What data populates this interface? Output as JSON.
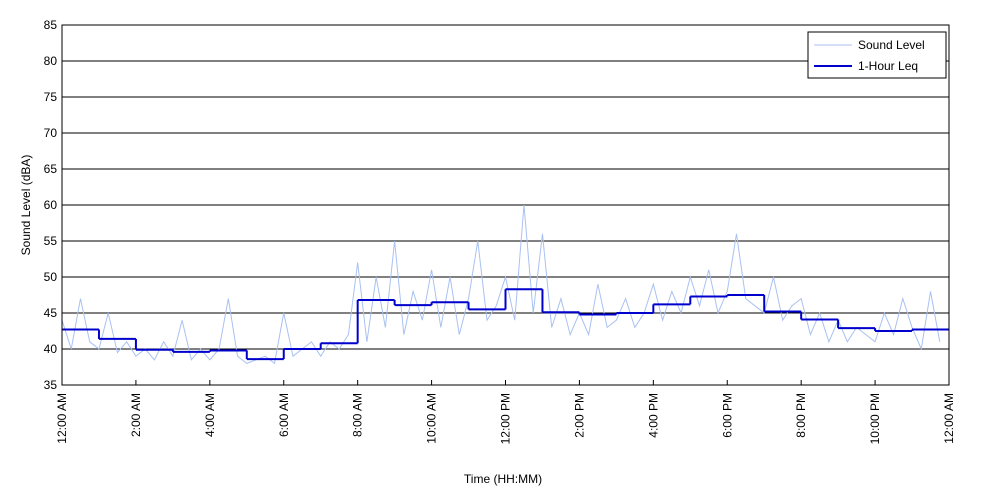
{
  "chart_data": {
    "type": "line",
    "xlabel": "Time (HH:MM)",
    "ylabel": "Sound Level (dBA)",
    "xlim": [
      0,
      24
    ],
    "ylim": [
      35,
      85
    ],
    "yticks": [
      35,
      40,
      45,
      50,
      55,
      60,
      65,
      70,
      75,
      80,
      85
    ],
    "xticks": [
      {
        "value": 0,
        "label": "12:00 AM"
      },
      {
        "value": 2,
        "label": "2:00 AM"
      },
      {
        "value": 4,
        "label": "4:00 AM"
      },
      {
        "value": 6,
        "label": "6:00 AM"
      },
      {
        "value": 8,
        "label": "8:00 AM"
      },
      {
        "value": 10,
        "label": "10:00 AM"
      },
      {
        "value": 12,
        "label": "12:00 PM"
      },
      {
        "value": 14,
        "label": "2:00 PM"
      },
      {
        "value": 16,
        "label": "4:00 PM"
      },
      {
        "value": 18,
        "label": "6:00 PM"
      },
      {
        "value": 20,
        "label": "8:00 PM"
      },
      {
        "value": 22,
        "label": "10:00 PM"
      },
      {
        "value": 24,
        "label": "12:00 AM"
      }
    ],
    "grid": true,
    "legend": "upper right",
    "series": [
      {
        "name": "Sound Level",
        "color": "#a9c1f2",
        "style": "line",
        "x": [
          0,
          0.25,
          0.5,
          0.75,
          1,
          1.25,
          1.5,
          1.75,
          2,
          2.25,
          2.5,
          2.75,
          3,
          3.25,
          3.5,
          3.75,
          4,
          4.25,
          4.5,
          4.75,
          5,
          5.25,
          5.5,
          5.75,
          6,
          6.25,
          6.5,
          6.75,
          7,
          7.25,
          7.5,
          7.75,
          8,
          8.25,
          8.5,
          8.75,
          9,
          9.25,
          9.5,
          9.75,
          10,
          10.25,
          10.5,
          10.75,
          11,
          11.25,
          11.5,
          11.75,
          12,
          12.25,
          12.5,
          12.75,
          13,
          13.25,
          13.5,
          13.75,
          14,
          14.25,
          14.5,
          14.75,
          15,
          15.25,
          15.5,
          15.75,
          16,
          16.25,
          16.5,
          16.75,
          17,
          17.25,
          17.5,
          17.75,
          18,
          18.25,
          18.5,
          18.75,
          19,
          19.25,
          19.5,
          19.75,
          20,
          20.25,
          20.5,
          20.75,
          21,
          21.25,
          21.5,
          21.75,
          22,
          22.25,
          22.5,
          22.75,
          23,
          23.25,
          23.5,
          23.75
        ],
        "values": [
          44,
          40,
          47,
          41,
          40,
          45,
          39.5,
          41,
          39,
          40,
          38.5,
          41,
          39,
          44,
          38.5,
          40,
          38.5,
          40,
          47,
          39,
          38,
          38.5,
          39,
          38,
          45,
          39,
          40,
          41,
          39,
          41,
          40,
          42,
          52,
          41,
          50,
          43,
          55,
          42,
          48,
          44,
          51,
          43,
          50,
          42,
          47,
          55,
          44,
          46,
          50,
          44,
          60,
          45,
          56,
          43,
          47,
          42,
          45,
          42,
          49,
          43,
          44,
          47,
          43,
          45,
          49,
          44,
          48,
          45,
          50,
          46,
          51,
          45,
          48,
          56,
          47,
          46,
          45,
          50,
          44,
          46,
          47,
          42,
          45,
          41,
          44,
          41,
          43,
          42,
          41,
          45,
          42,
          47,
          43,
          40,
          48,
          41
        ]
      },
      {
        "name": "1-Hour Leq",
        "color": "#0000cc",
        "style": "step",
        "x": [
          0,
          1,
          2,
          3,
          4,
          5,
          6,
          7,
          8,
          9,
          10,
          11,
          12,
          13,
          14,
          15,
          16,
          17,
          18,
          19,
          20,
          21,
          22,
          23
        ],
        "values": [
          42.7,
          41.4,
          39.9,
          39.6,
          39.8,
          38.6,
          40.0,
          40.8,
          46.8,
          46.1,
          46.5,
          45.5,
          48.3,
          45.1,
          44.8,
          45.0,
          46.2,
          47.3,
          47.5,
          45.2,
          44.1,
          42.9,
          42.5,
          42.7
        ]
      }
    ]
  }
}
